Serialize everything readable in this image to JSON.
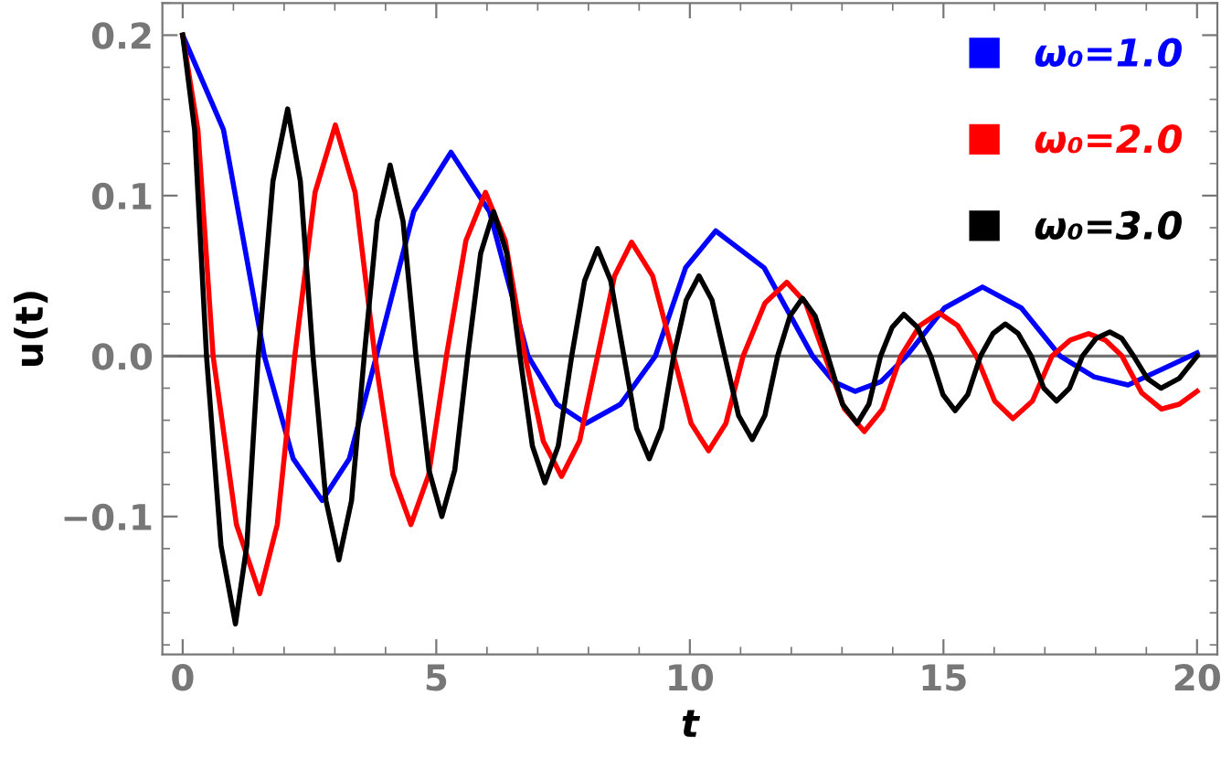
{
  "chart_data": {
    "type": "line",
    "xlabel": "t",
    "ylabel": "u(t)",
    "xlim": [
      -0.4,
      20.4
    ],
    "ylim": [
      -0.186,
      0.22
    ],
    "xticks": [
      0,
      5,
      10,
      15,
      20
    ],
    "yticks": [
      {
        "value": -0.1,
        "label": "−0.1"
      },
      {
        "value": 0.0,
        "label": "0.0"
      },
      {
        "value": 0.1,
        "label": "0.1"
      },
      {
        "value": 0.2,
        "label": "0.2"
      }
    ],
    "legend": "top right",
    "line_style": "solid",
    "ref_lines": [
      {
        "axis": "y",
        "value": 0,
        "color": "#707070"
      }
    ],
    "series": [
      {
        "name": "ω₀=1.0",
        "color": "#0000ff",
        "x": [
          0,
          0.805,
          1.61,
          2.18,
          2.75,
          3.285,
          3.82,
          4.555,
          5.29,
          6.05,
          6.81,
          7.38,
          7.95,
          8.635,
          9.32,
          9.915,
          10.51,
          11.465,
          12.42,
          12.84,
          13.26,
          13.765,
          14.27,
          15.02,
          15.77,
          16.535,
          17.3,
          17.97,
          18.64,
          19.32,
          20
        ],
        "values": [
          0.2,
          0.141,
          0,
          -0.064,
          -0.09,
          -0.064,
          0,
          0.09,
          0.127,
          0.09,
          0,
          -0.03,
          -0.042,
          -0.03,
          0,
          0.055,
          0.078,
          0.055,
          0,
          -0.016,
          -0.022,
          -0.016,
          0,
          0.03,
          0.043,
          0.03,
          0,
          -0.013,
          -0.018,
          -0.008,
          0.002
        ]
      },
      {
        "name": "ω₀=2.0",
        "color": "#ff0000",
        "x": [
          0,
          0.3,
          0.6,
          1.06,
          1.52,
          1.865,
          2.21,
          2.61,
          3.01,
          3.4,
          3.79,
          4.145,
          4.5,
          4.85,
          5.2,
          5.585,
          5.97,
          6.36,
          6.75,
          7.11,
          7.47,
          7.825,
          8.18,
          8.515,
          8.85,
          9.265,
          9.68,
          10.025,
          10.37,
          10.71,
          11.05,
          11.48,
          11.91,
          12.285,
          12.66,
          13.05,
          13.44,
          13.8,
          14.16,
          14.535,
          14.91,
          15.28,
          15.65,
          16.01,
          16.37,
          16.755,
          17.14,
          17.5,
          17.86,
          18.19,
          18.52,
          18.91,
          19.3,
          19.65,
          20
        ],
        "values": [
          0.2,
          0.141,
          0,
          -0.105,
          -0.148,
          -0.105,
          0,
          0.102,
          0.144,
          0.102,
          0,
          -0.074,
          -0.105,
          -0.074,
          0,
          0.072,
          0.102,
          0.072,
          0,
          -0.053,
          -0.075,
          -0.053,
          0,
          0.05,
          0.071,
          0.05,
          0,
          -0.042,
          -0.059,
          -0.042,
          0,
          0.033,
          0.046,
          0.033,
          0,
          -0.033,
          -0.047,
          -0.033,
          0,
          0.019,
          0.027,
          0.019,
          0,
          -0.028,
          -0.039,
          -0.028,
          0,
          0.01,
          0.014,
          0.01,
          0,
          -0.023,
          -0.033,
          -0.03,
          -0.022
        ]
      },
      {
        "name": "ω₀=3.0",
        "color": "#000000",
        "x": [
          0,
          0.235,
          0.47,
          0.755,
          1.04,
          1.265,
          1.49,
          1.78,
          2.07,
          2.32,
          2.57,
          2.825,
          3.08,
          3.33,
          3.58,
          3.835,
          4.09,
          4.345,
          4.6,
          4.855,
          5.11,
          5.365,
          5.62,
          5.875,
          6.13,
          6.39,
          6.65,
          6.895,
          7.14,
          7.405,
          7.67,
          7.925,
          8.18,
          8.44,
          8.7,
          8.95,
          9.2,
          9.44,
          9.68,
          9.93,
          10.18,
          10.435,
          10.69,
          10.96,
          11.23,
          11.48,
          11.73,
          11.975,
          12.22,
          12.47,
          12.72,
          13.01,
          13.3,
          13.53,
          13.76,
          13.99,
          14.22,
          14.485,
          14.75,
          14.99,
          15.23,
          15.48,
          15.73,
          15.975,
          16.22,
          16.475,
          16.73,
          16.98,
          17.23,
          17.485,
          17.74,
          18.01,
          18.28,
          18.515,
          18.75,
          19.02,
          19.29,
          19.645,
          20
        ],
        "values": [
          0.2,
          0.141,
          0,
          -0.118,
          -0.167,
          -0.118,
          0,
          0.109,
          0.154,
          0.109,
          0,
          -0.09,
          -0.127,
          -0.09,
          0,
          0.084,
          0.119,
          0.084,
          0,
          -0.071,
          -0.1,
          -0.071,
          0,
          0.064,
          0.09,
          0.064,
          0,
          -0.056,
          -0.079,
          -0.056,
          0,
          0.047,
          0.067,
          0.047,
          0,
          -0.045,
          -0.064,
          -0.045,
          0,
          0.035,
          0.05,
          0.035,
          0,
          -0.037,
          -0.052,
          -0.037,
          0,
          0.025,
          0.036,
          0.025,
          0,
          -0.03,
          -0.042,
          -0.03,
          0,
          0.018,
          0.026,
          0.018,
          0,
          -0.024,
          -0.034,
          -0.024,
          0,
          0.014,
          0.02,
          0.014,
          0,
          -0.02,
          -0.028,
          -0.02,
          0,
          0.011,
          0.015,
          0.011,
          0,
          -0.014,
          -0.02,
          -0.014,
          0
        ]
      }
    ]
  }
}
